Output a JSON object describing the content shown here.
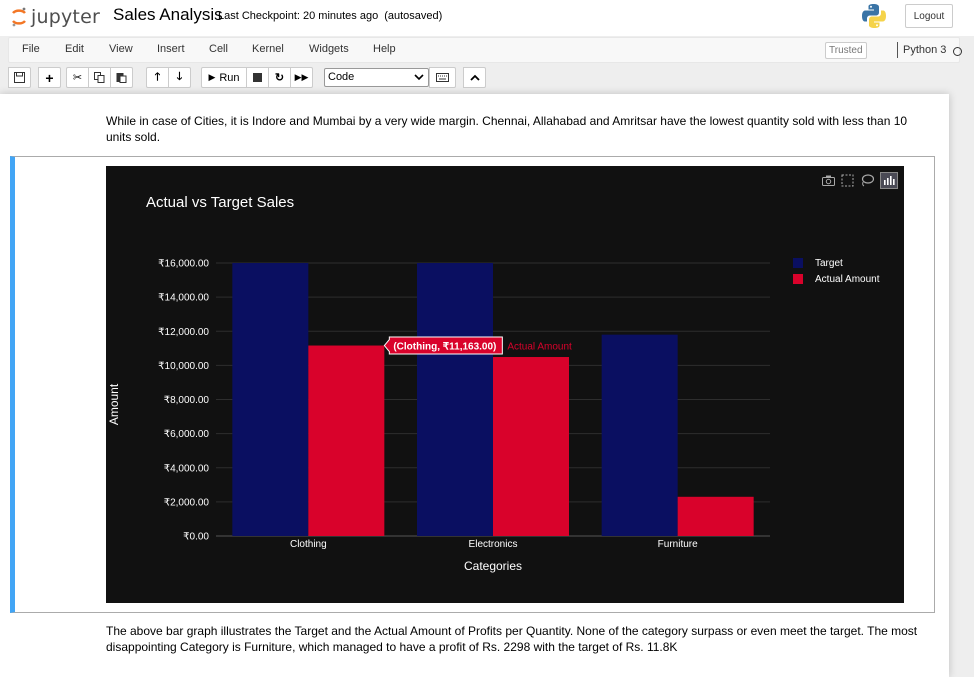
{
  "header": {
    "logo_text": "jupyter",
    "notebook_name": "Sales Analysis",
    "checkpoint": "Last Checkpoint: 20 minutes ago",
    "autosave": "(autosaved)",
    "logout_label": "Logout"
  },
  "menubar": {
    "items": [
      "File",
      "Edit",
      "View",
      "Insert",
      "Cell",
      "Kernel",
      "Widgets",
      "Help"
    ],
    "trusted_label": "Trusted",
    "kernel_name": "Python 3"
  },
  "toolbar": {
    "run_label": "Run",
    "cell_type": "Code"
  },
  "cells": {
    "md_before": "While in case of Cities, it is Indore and Mumbai by a very wide margin. Chennai, Allahabad and Amritsar have the lowest quantity sold with less than 10 units sold.",
    "md_after": "The above bar graph illustrates the Target and the Actual Amount of Profits per Quantity. None of the category surpass or even meet the target. The most disappointing Category is Furniture, which managed to have a profit of Rs. 2298 with the target of Rs. 11.8K"
  },
  "chart_data": {
    "type": "bar",
    "title": "Actual vs Target Sales",
    "xlabel": "Categories",
    "ylabel": "Amount",
    "categories": [
      "Clothing",
      "Electronics",
      "Furniture"
    ],
    "series": [
      {
        "name": "Target",
        "values": [
          16000,
          16000,
          11800
        ],
        "color": "#0a0f61"
      },
      {
        "name": "Actual Amount",
        "values": [
          11163,
          10490,
          2298
        ],
        "color": "#d9022b"
      }
    ],
    "ylim": [
      0,
      16000
    ],
    "yticks": [
      "₹0.00",
      "₹2,000.00",
      "₹4,000.00",
      "₹6,000.00",
      "₹8,000.00",
      "₹10,000.00",
      "₹12,000.00",
      "₹14,000.00",
      "₹16,000.00"
    ],
    "ytick_values": [
      0,
      2000,
      4000,
      6000,
      8000,
      10000,
      12000,
      14000,
      16000
    ],
    "grid": true,
    "legend_position": "top-right",
    "background": "#111111",
    "hover": {
      "text": "(Clothing, ₹11,163.00)",
      "series": "Actual Amount",
      "category_index": 0,
      "series_index": 1
    }
  }
}
